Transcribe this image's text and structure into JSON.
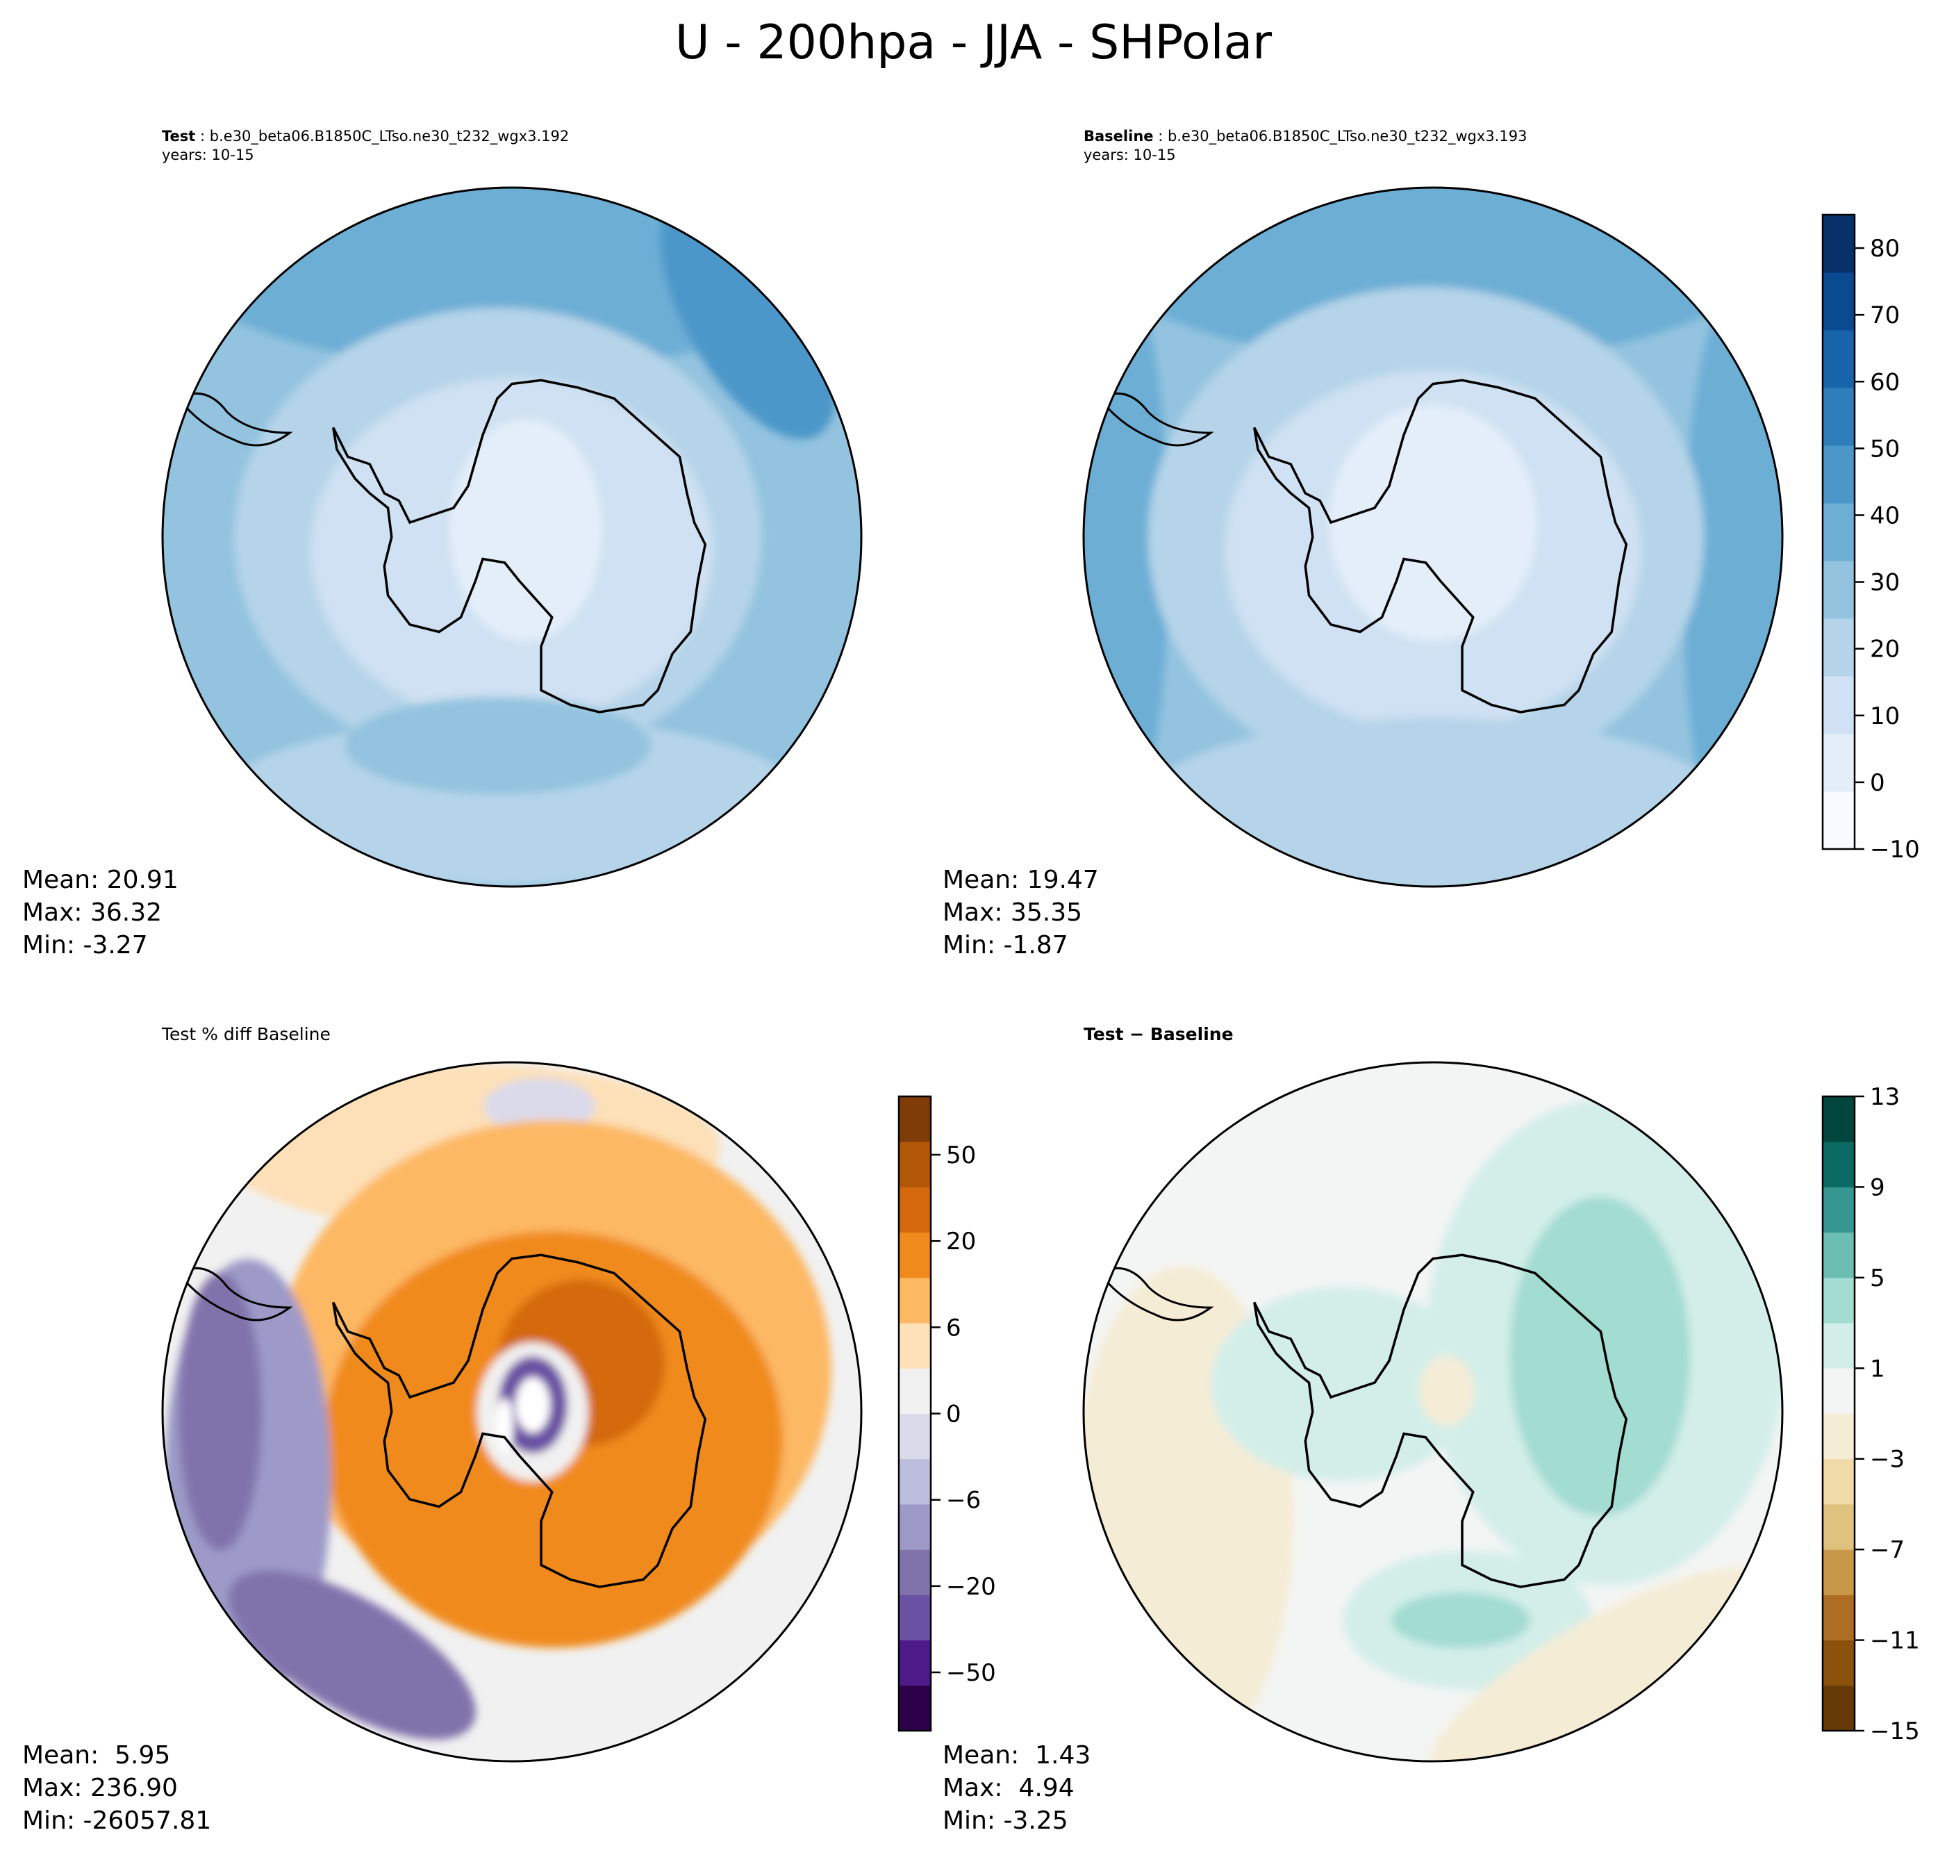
{
  "chart_data": [
    {
      "type": "heatmap",
      "panel": "test",
      "label": "Test",
      "case": "b.e30_beta06.B1850C_LTso.ne30_t232_wgx3.192",
      "years": "years: 10-15",
      "stats": {
        "mean": "Mean: 20.91",
        "max": "Max: 36.32",
        "min": "Min: -3.27"
      }
    },
    {
      "type": "heatmap",
      "panel": "baseline",
      "label": "Baseline",
      "case": "b.e30_beta06.B1850C_LTso.ne30_t232_wgx3.193",
      "years": "years: 10-15",
      "stats": {
        "mean": "Mean: 19.47",
        "max": "Max: 35.35",
        "min": "Min: -1.87"
      },
      "colorbar": {
        "range": [
          -10,
          85
        ],
        "ticks": [
          "−10",
          "0",
          "10",
          "20",
          "30",
          "40",
          "50",
          "60",
          "70",
          "80"
        ],
        "colors": [
          "#f7fbff",
          "#e3eef9",
          "#cfe1f2",
          "#b5d4e9",
          "#93c3df",
          "#6daed5",
          "#4b97c9",
          "#2f7ebc",
          "#1864aa",
          "#0a4a90",
          "#08306b"
        ]
      }
    },
    {
      "type": "heatmap",
      "panel": "pct_diff",
      "label": "Test % diff Baseline",
      "stats": {
        "mean": "Mean:  5.95",
        "max": "Max: 236.90",
        "min": "Min: -26057.81"
      },
      "colorbar": {
        "ticks": [
          "−50",
          "−20",
          "−6",
          "0",
          "6",
          "20",
          "50"
        ],
        "colors": [
          "#2d004b",
          "#4e1a89",
          "#6a51a3",
          "#8073ac",
          "#9e9ac8",
          "#bcbddc",
          "#dadaeb",
          "#f1f1f1",
          "#fde0b8",
          "#fdb863",
          "#f08a1d",
          "#d4690e",
          "#b35806",
          "#7f3b08"
        ]
      }
    },
    {
      "type": "heatmap",
      "panel": "diff",
      "label": "Test − Baseline",
      "stats": {
        "mean": "Mean:  1.43",
        "max": "Max:  4.94",
        "min": "Min: -3.25"
      },
      "colorbar": {
        "range": [
          -15,
          13
        ],
        "ticks": [
          "−15",
          "−11",
          "−7",
          "−3",
          "1",
          "5",
          "9",
          "13"
        ],
        "colors": [
          "#663a07",
          "#8b510a",
          "#af6d23",
          "#c9974a",
          "#dfc27d",
          "#efdaa8",
          "#f5ecd6",
          "#f3f5f4",
          "#d3eee9",
          "#a3dcd1",
          "#6bbeb1",
          "#35978f",
          "#0b6b62",
          "#01463c"
        ]
      }
    }
  ],
  "title": "U - 200hpa - JJA - SHPolar"
}
